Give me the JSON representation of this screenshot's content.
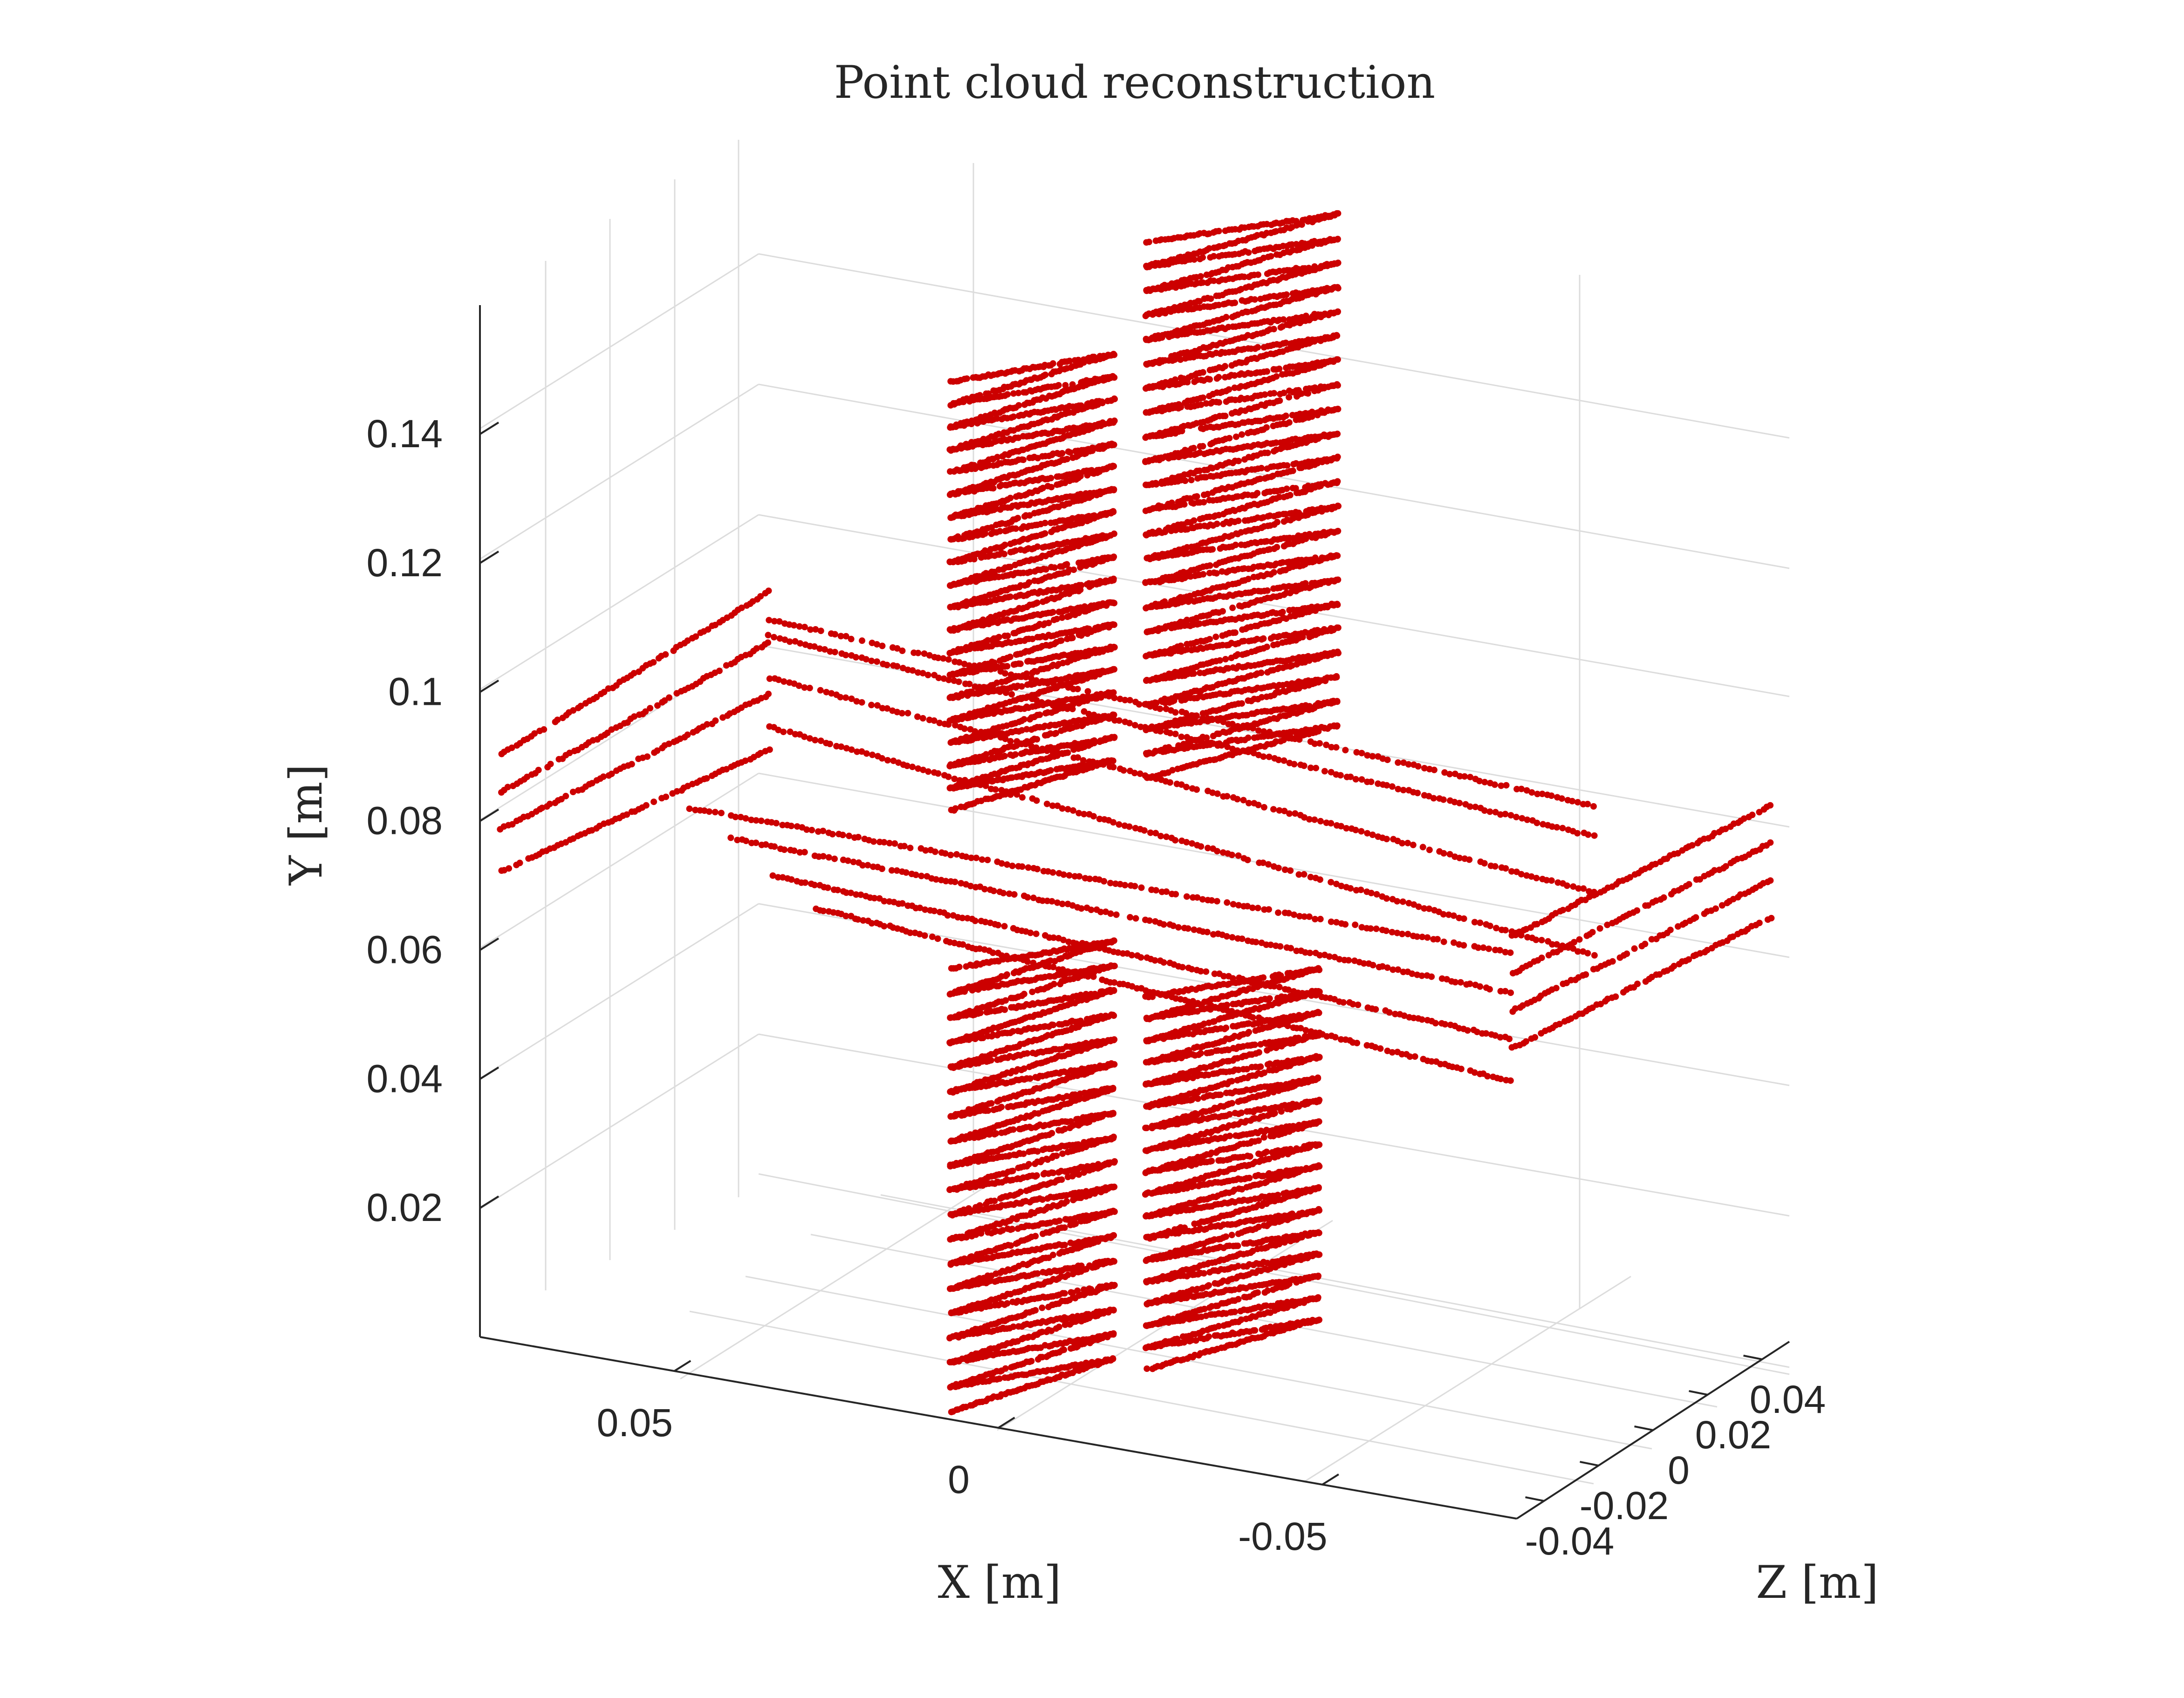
{
  "chart_data": {
    "type": "scatter",
    "subtype": "3d-point-cloud",
    "title": "Point cloud reconstruction",
    "xlabel": "X [m]",
    "ylabel": "Y [m]",
    "zlabel": "Z [m]",
    "xlim": [
      -0.08,
      0.08
    ],
    "ylim": [
      0,
      0.16
    ],
    "zlim": [
      -0.05,
      0.05
    ],
    "x_ticks": [
      "0.05",
      "0",
      "-0.05"
    ],
    "y_ticks": [
      "0.02",
      "0.04",
      "0.06",
      "0.08",
      "0.1",
      "0.12",
      "0.14"
    ],
    "z_ticks": [
      "0.04",
      "0.02",
      "0",
      "-0.02",
      "-0.04"
    ],
    "grid": true,
    "view": "3d-perspective",
    "marker_color": "#cc0000",
    "shape": "cross-shaped object scanned in stripes",
    "series": [
      {
        "part": "upper-arm-left-face",
        "x_range": [
          0.005,
          -0.02
        ],
        "y_range": [
          0.085,
          0.16
        ],
        "z": 0.0,
        "stripe_count": 19
      },
      {
        "part": "upper-arm-right-face",
        "x_range": [
          -0.03,
          -0.06
        ],
        "y_range": [
          0.085,
          0.17
        ],
        "z": 0.0,
        "stripe_count": 22
      },
      {
        "part": "lower-arm-left-face",
        "x_range": [
          0.005,
          -0.02
        ],
        "y_range": [
          0.0,
          0.065
        ],
        "z": 0.0,
        "stripe_count": 18
      },
      {
        "part": "lower-arm-right-face",
        "x_range": [
          -0.03,
          -0.06
        ],
        "y_range": [
          0.005,
          0.07
        ],
        "z": 0.0,
        "stripe_count": 17
      },
      {
        "part": "horizontal-bar-upper-scanlines",
        "x_range": [
          0.08,
          -0.08
        ],
        "y_values": [
          0.088,
          0.094,
          0.1,
          0.105
        ],
        "z": 0.0
      },
      {
        "part": "horizontal-bar-lower-scanlines",
        "x_range": [
          0.07,
          -0.08
        ],
        "y_values": [
          0.058,
          0.064,
          0.07,
          0.076
        ],
        "z": 0.0
      },
      {
        "part": "left-end-face",
        "x": 0.08,
        "y_range": [
          0.075,
          0.105
        ],
        "z_range": [
          -0.04,
          0.04
        ]
      },
      {
        "part": "right-end-face",
        "x": -0.08,
        "y_range": [
          0.055,
          0.085
        ],
        "z_range": [
          -0.04,
          0.04
        ]
      }
    ]
  }
}
